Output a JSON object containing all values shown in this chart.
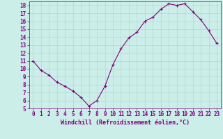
{
  "x": [
    0,
    1,
    2,
    3,
    4,
    5,
    6,
    7,
    8,
    9,
    10,
    11,
    12,
    13,
    14,
    15,
    16,
    17,
    18,
    19,
    20,
    21,
    22,
    23
  ],
  "y": [
    11.0,
    9.8,
    9.2,
    8.3,
    7.8,
    7.2,
    6.4,
    5.3,
    6.0,
    7.8,
    10.5,
    12.5,
    13.9,
    14.6,
    16.0,
    16.5,
    17.5,
    18.2,
    18.0,
    18.2,
    17.2,
    16.2,
    14.8,
    13.2
  ],
  "line_color": "#800080",
  "marker": "+",
  "marker_size": 3,
  "marker_lw": 0.8,
  "line_width": 0.8,
  "bg_color": "#cceee8",
  "grid_color": "#b0d8d0",
  "tick_color": "#800080",
  "xlabel": "Windchill (Refroidissement éolien,°C)",
  "ylim": [
    5,
    18.5
  ],
  "xlim": [
    -0.5,
    23.5
  ],
  "yticks": [
    5,
    6,
    7,
    8,
    9,
    10,
    11,
    12,
    13,
    14,
    15,
    16,
    17,
    18
  ],
  "xticks": [
    0,
    1,
    2,
    3,
    4,
    5,
    6,
    7,
    8,
    9,
    10,
    11,
    12,
    13,
    14,
    15,
    16,
    17,
    18,
    19,
    20,
    21,
    22,
    23
  ],
  "tick_fontsize": 5.5,
  "xlabel_fontsize": 6.0
}
